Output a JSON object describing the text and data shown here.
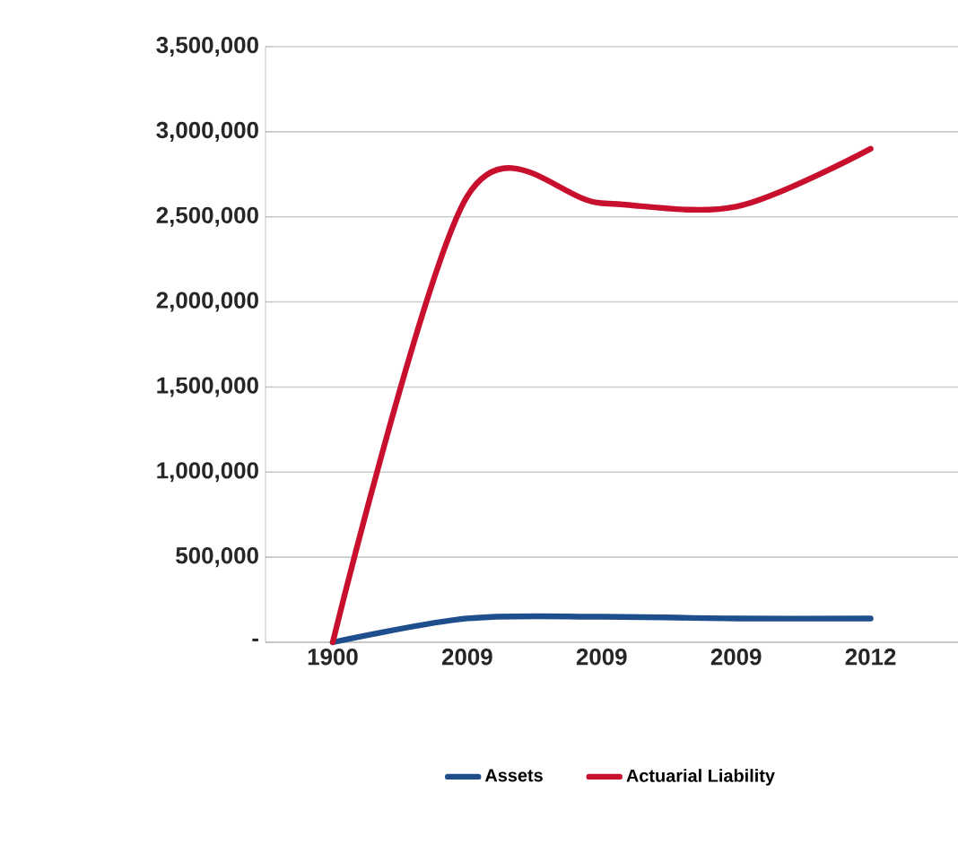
{
  "chart_data": {
    "type": "line",
    "categories": [
      "1900",
      "2009",
      "2009",
      "2009",
      "2012"
    ],
    "series": [
      {
        "name": "Assets",
        "color": "#1f4e8c",
        "values": [
          0,
          140000,
          150000,
          140000,
          140000
        ]
      },
      {
        "name": "Actuarial Liability",
        "color": "#c8102e",
        "values": [
          0,
          2620000,
          2580000,
          2560000,
          2900000
        ]
      }
    ],
    "ylim": [
      0,
      3500000
    ],
    "yticks": [
      {
        "value": 0,
        "label": "-"
      },
      {
        "value": 500000,
        "label": "500,000"
      },
      {
        "value": 1000000,
        "label": "1,000,000"
      },
      {
        "value": 1500000,
        "label": "1,500,000"
      },
      {
        "value": 2000000,
        "label": "2,000,000"
      },
      {
        "value": 2500000,
        "label": "2,500,000"
      },
      {
        "value": 3000000,
        "label": "3,000,000"
      },
      {
        "value": 3500000,
        "label": "3,500,000"
      }
    ],
    "grid": "y",
    "legend": "bottom",
    "marker": "none",
    "line_style": "solid"
  }
}
